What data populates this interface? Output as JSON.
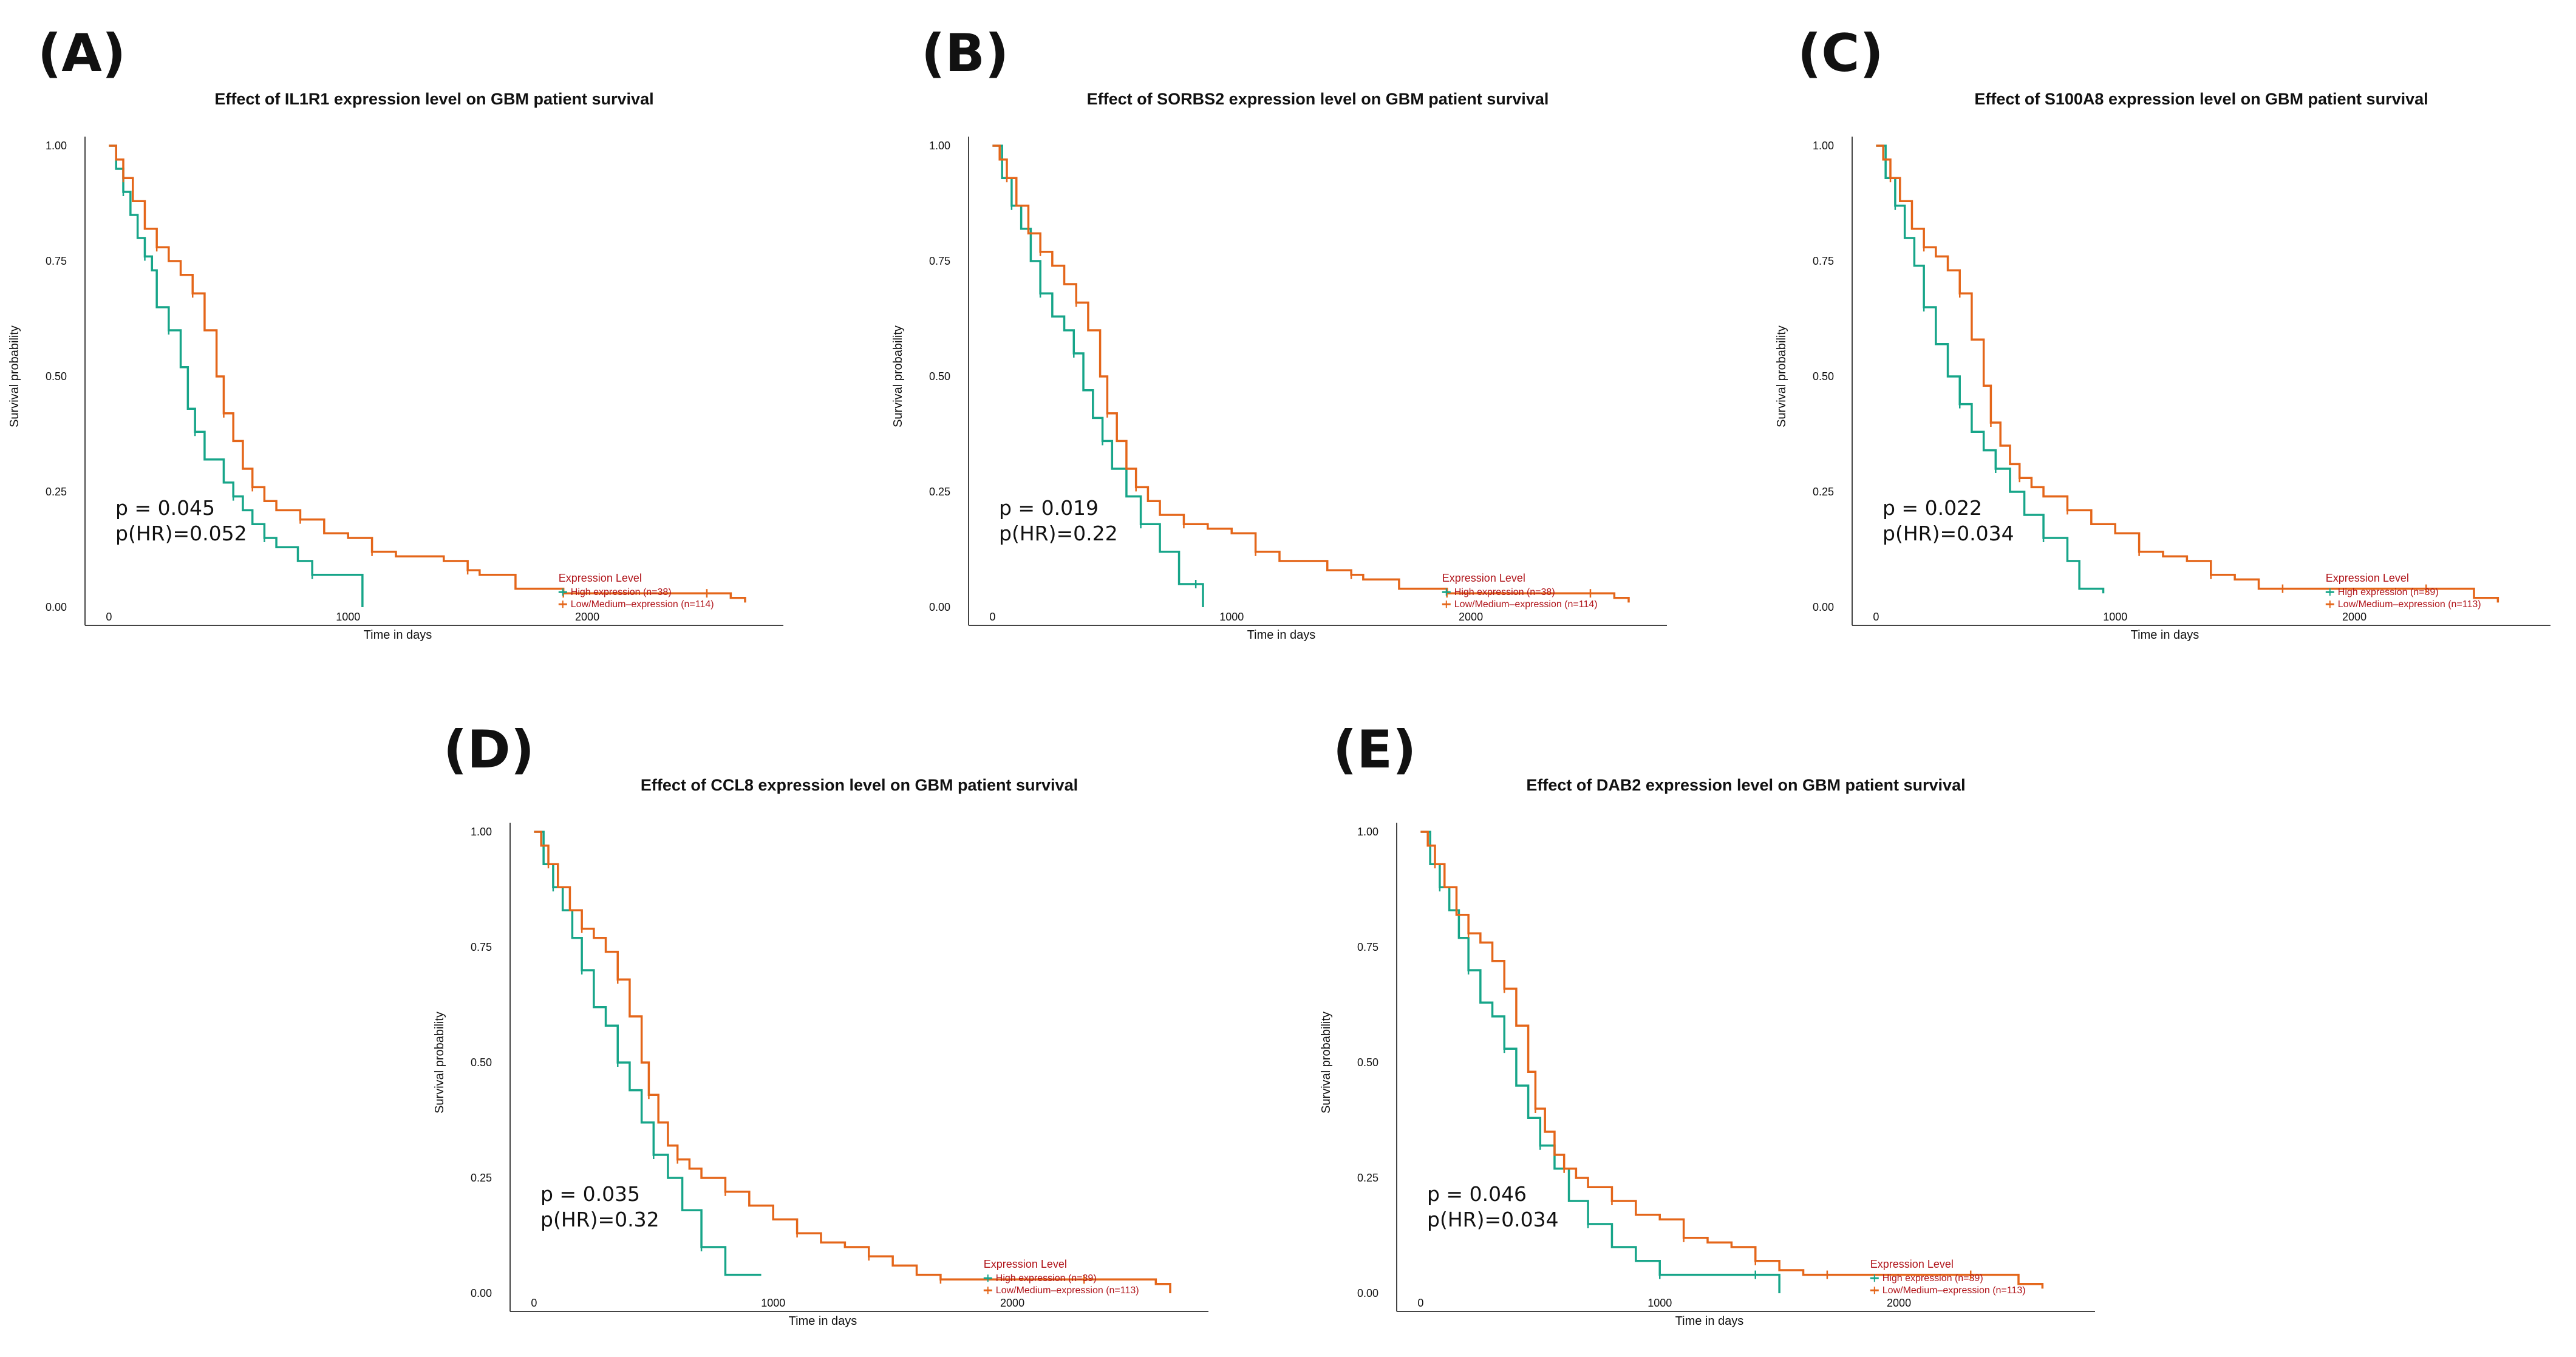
{
  "colors": {
    "high": "#17a589",
    "low": "#e4661a",
    "legend_text": "#b0141a"
  },
  "chart_data": [
    {
      "panel": "(A)",
      "type": "line",
      "title": "Effect of IL1R1 expression level on GBM patient survival",
      "xlabel": "Time in days",
      "ylabel": "Survival probability",
      "xlim": [
        -100,
        2820
      ],
      "ylim": [
        0,
        1
      ],
      "x_ticks": [
        "0",
        "1000",
        "2000"
      ],
      "y_ticks": [
        "0.00",
        "0.25",
        "0.50",
        "0.75",
        "1.00"
      ],
      "p_value": "p = 0.045",
      "p_hr": "p(HR)=0.052",
      "legend_title": "Expression Level",
      "series": [
        {
          "name": "High expression (n=38)",
          "x": [
            0,
            30,
            60,
            90,
            120,
            150,
            180,
            200,
            250,
            300,
            330,
            360,
            400,
            480,
            520,
            560,
            600,
            650,
            700,
            790,
            850,
            1000,
            1060
          ],
          "y": [
            1.0,
            0.95,
            0.9,
            0.85,
            0.8,
            0.76,
            0.73,
            0.65,
            0.6,
            0.52,
            0.43,
            0.38,
            0.32,
            0.27,
            0.24,
            0.21,
            0.18,
            0.15,
            0.13,
            0.1,
            0.07,
            0.07,
            0.0
          ]
        },
        {
          "name": "Low/Medium–expression (n=114)",
          "x": [
            0,
            30,
            60,
            100,
            150,
            200,
            250,
            300,
            350,
            400,
            450,
            480,
            520,
            560,
            600,
            650,
            700,
            800,
            900,
            1000,
            1100,
            1200,
            1400,
            1500,
            1550,
            1700,
            1900,
            2100,
            2300,
            2500,
            2600,
            2660
          ],
          "y": [
            1.0,
            0.97,
            0.93,
            0.88,
            0.82,
            0.78,
            0.75,
            0.72,
            0.68,
            0.6,
            0.5,
            0.42,
            0.36,
            0.3,
            0.26,
            0.23,
            0.21,
            0.19,
            0.16,
            0.15,
            0.12,
            0.11,
            0.1,
            0.08,
            0.07,
            0.04,
            0.03,
            0.03,
            0.03,
            0.03,
            0.02,
            0.01
          ]
        }
      ]
    },
    {
      "panel": "(B)",
      "type": "line",
      "title": "Effect of SORBS2 expression level on GBM patient survival",
      "xlabel": "Time in days",
      "ylabel": "Survival probability",
      "xlim": [
        -100,
        2820
      ],
      "ylim": [
        0,
        1
      ],
      "x_ticks": [
        "0",
        "1000",
        "2000"
      ],
      "y_ticks": [
        "0.00",
        "0.25",
        "0.50",
        "0.75",
        "1.00"
      ],
      "p_value": "p = 0.019",
      "p_hr": "p(HR)=0.22",
      "legend_title": "Expression Level",
      "series": [
        {
          "name": "High expression (n=38)",
          "x": [
            0,
            40,
            80,
            120,
            160,
            200,
            250,
            300,
            340,
            380,
            420,
            460,
            500,
            560,
            620,
            700,
            780,
            850,
            880
          ],
          "y": [
            1.0,
            0.93,
            0.87,
            0.82,
            0.75,
            0.68,
            0.63,
            0.6,
            0.55,
            0.47,
            0.41,
            0.36,
            0.3,
            0.24,
            0.18,
            0.12,
            0.05,
            0.05,
            0.0
          ]
        },
        {
          "name": "Low/Medium–expression (n=114)",
          "x": [
            0,
            30,
            60,
            100,
            150,
            200,
            250,
            300,
            350,
            400,
            450,
            480,
            520,
            560,
            600,
            650,
            700,
            800,
            900,
            1000,
            1100,
            1200,
            1400,
            1500,
            1550,
            1700,
            1900,
            2100,
            2300,
            2500,
            2600,
            2660
          ],
          "y": [
            1.0,
            0.97,
            0.93,
            0.87,
            0.81,
            0.77,
            0.74,
            0.7,
            0.66,
            0.6,
            0.5,
            0.42,
            0.36,
            0.3,
            0.26,
            0.23,
            0.2,
            0.18,
            0.17,
            0.16,
            0.12,
            0.1,
            0.08,
            0.07,
            0.06,
            0.04,
            0.03,
            0.03,
            0.03,
            0.03,
            0.02,
            0.01
          ]
        }
      ]
    },
    {
      "panel": "(C)",
      "type": "line",
      "title": "Effect of S100A8 expression level on GBM patient survival",
      "xlabel": "Time in days",
      "ylabel": "Survival probability",
      "xlim": [
        -100,
        2820
      ],
      "ylim": [
        0,
        1
      ],
      "x_ticks": [
        "0",
        "1000",
        "2000"
      ],
      "y_ticks": [
        "0.00",
        "0.25",
        "0.50",
        "0.75",
        "1.00"
      ],
      "p_value": "p = 0.022",
      "p_hr": "p(HR)=0.034",
      "legend_title": "Expression Level",
      "series": [
        {
          "name": "High expression (n=39)",
          "x": [
            0,
            40,
            80,
            120,
            160,
            200,
            250,
            300,
            350,
            400,
            450,
            500,
            560,
            620,
            700,
            800,
            850,
            950
          ],
          "y": [
            1.0,
            0.93,
            0.87,
            0.8,
            0.74,
            0.65,
            0.57,
            0.5,
            0.44,
            0.38,
            0.34,
            0.3,
            0.25,
            0.2,
            0.15,
            0.1,
            0.04,
            0.03
          ]
        },
        {
          "name": "Low/Medium–expression (n=113)",
          "x": [
            0,
            30,
            60,
            100,
            150,
            200,
            250,
            300,
            350,
            400,
            450,
            480,
            520,
            560,
            600,
            650,
            700,
            800,
            900,
            1000,
            1100,
            1200,
            1300,
            1400,
            1500,
            1600,
            1700,
            1900,
            2100,
            2300,
            2500,
            2600
          ],
          "y": [
            1.0,
            0.97,
            0.93,
            0.88,
            0.82,
            0.78,
            0.76,
            0.73,
            0.68,
            0.58,
            0.48,
            0.4,
            0.35,
            0.31,
            0.28,
            0.26,
            0.24,
            0.21,
            0.18,
            0.16,
            0.12,
            0.11,
            0.1,
            0.07,
            0.06,
            0.04,
            0.04,
            0.04,
            0.04,
            0.04,
            0.02,
            0.01
          ]
        }
      ]
    },
    {
      "panel": "(D)",
      "type": "line",
      "title": "Effect of CCL8 expression level on GBM patient survival",
      "xlabel": "Time in days",
      "ylabel": "Survival probability",
      "xlim": [
        -100,
        2820
      ],
      "ylim": [
        0,
        1
      ],
      "x_ticks": [
        "0",
        "1000",
        "2000"
      ],
      "y_ticks": [
        "0.00",
        "0.25",
        "0.50",
        "0.75",
        "1.00"
      ],
      "p_value": "p = 0.035",
      "p_hr": "p(HR)=0.32",
      "legend_title": "Expression Level",
      "series": [
        {
          "name": "High expression (n=39)",
          "x": [
            0,
            40,
            80,
            120,
            160,
            200,
            250,
            300,
            350,
            400,
            450,
            500,
            560,
            620,
            700,
            800,
            950
          ],
          "y": [
            1.0,
            0.93,
            0.88,
            0.83,
            0.77,
            0.7,
            0.62,
            0.58,
            0.5,
            0.44,
            0.37,
            0.3,
            0.25,
            0.18,
            0.1,
            0.04,
            0.04
          ]
        },
        {
          "name": "Low/Medium–expression (n=113)",
          "x": [
            0,
            30,
            60,
            100,
            150,
            200,
            250,
            300,
            350,
            400,
            450,
            480,
            520,
            560,
            600,
            650,
            700,
            800,
            900,
            1000,
            1100,
            1200,
            1300,
            1400,
            1500,
            1600,
            1700,
            1900,
            2100,
            2300,
            2500,
            2600,
            2660
          ],
          "y": [
            1.0,
            0.97,
            0.93,
            0.88,
            0.83,
            0.79,
            0.77,
            0.74,
            0.68,
            0.6,
            0.5,
            0.43,
            0.37,
            0.32,
            0.29,
            0.27,
            0.25,
            0.22,
            0.19,
            0.16,
            0.13,
            0.11,
            0.1,
            0.08,
            0.06,
            0.04,
            0.03,
            0.03,
            0.03,
            0.03,
            0.03,
            0.02,
            0.0
          ]
        }
      ]
    },
    {
      "panel": "(E)",
      "type": "line",
      "title": "Effect of DAB2 expression level on GBM patient survival",
      "xlabel": "Time in days",
      "ylabel": "Survival probability",
      "xlim": [
        -100,
        2820
      ],
      "ylim": [
        0,
        1
      ],
      "x_ticks": [
        "0",
        "1000",
        "2000"
      ],
      "y_ticks": [
        "0.00",
        "0.25",
        "0.50",
        "0.75",
        "1.00"
      ],
      "p_value": "p = 0.046",
      "p_hr": "p(HR)=0.034",
      "legend_title": "Expression Level",
      "series": [
        {
          "name": "High expression (n=39)",
          "x": [
            0,
            40,
            80,
            120,
            160,
            200,
            250,
            300,
            350,
            400,
            450,
            500,
            560,
            620,
            700,
            800,
            900,
            1000,
            1200,
            1300,
            1400,
            1500
          ],
          "y": [
            1.0,
            0.93,
            0.88,
            0.83,
            0.77,
            0.7,
            0.63,
            0.6,
            0.53,
            0.45,
            0.38,
            0.32,
            0.27,
            0.2,
            0.15,
            0.1,
            0.07,
            0.04,
            0.04,
            0.04,
            0.04,
            0.0
          ]
        },
        {
          "name": "Low/Medium–expression (n=113)",
          "x": [
            0,
            30,
            60,
            100,
            150,
            200,
            250,
            300,
            350,
            400,
            450,
            480,
            520,
            560,
            600,
            650,
            700,
            800,
            900,
            1000,
            1100,
            1200,
            1300,
            1400,
            1500,
            1600,
            1700,
            1900,
            2100,
            2300,
            2500,
            2600
          ],
          "y": [
            1.0,
            0.97,
            0.93,
            0.88,
            0.82,
            0.78,
            0.76,
            0.72,
            0.66,
            0.58,
            0.48,
            0.4,
            0.35,
            0.3,
            0.27,
            0.25,
            0.23,
            0.2,
            0.17,
            0.16,
            0.12,
            0.11,
            0.1,
            0.07,
            0.05,
            0.04,
            0.04,
            0.04,
            0.04,
            0.04,
            0.02,
            0.01
          ]
        }
      ]
    }
  ]
}
